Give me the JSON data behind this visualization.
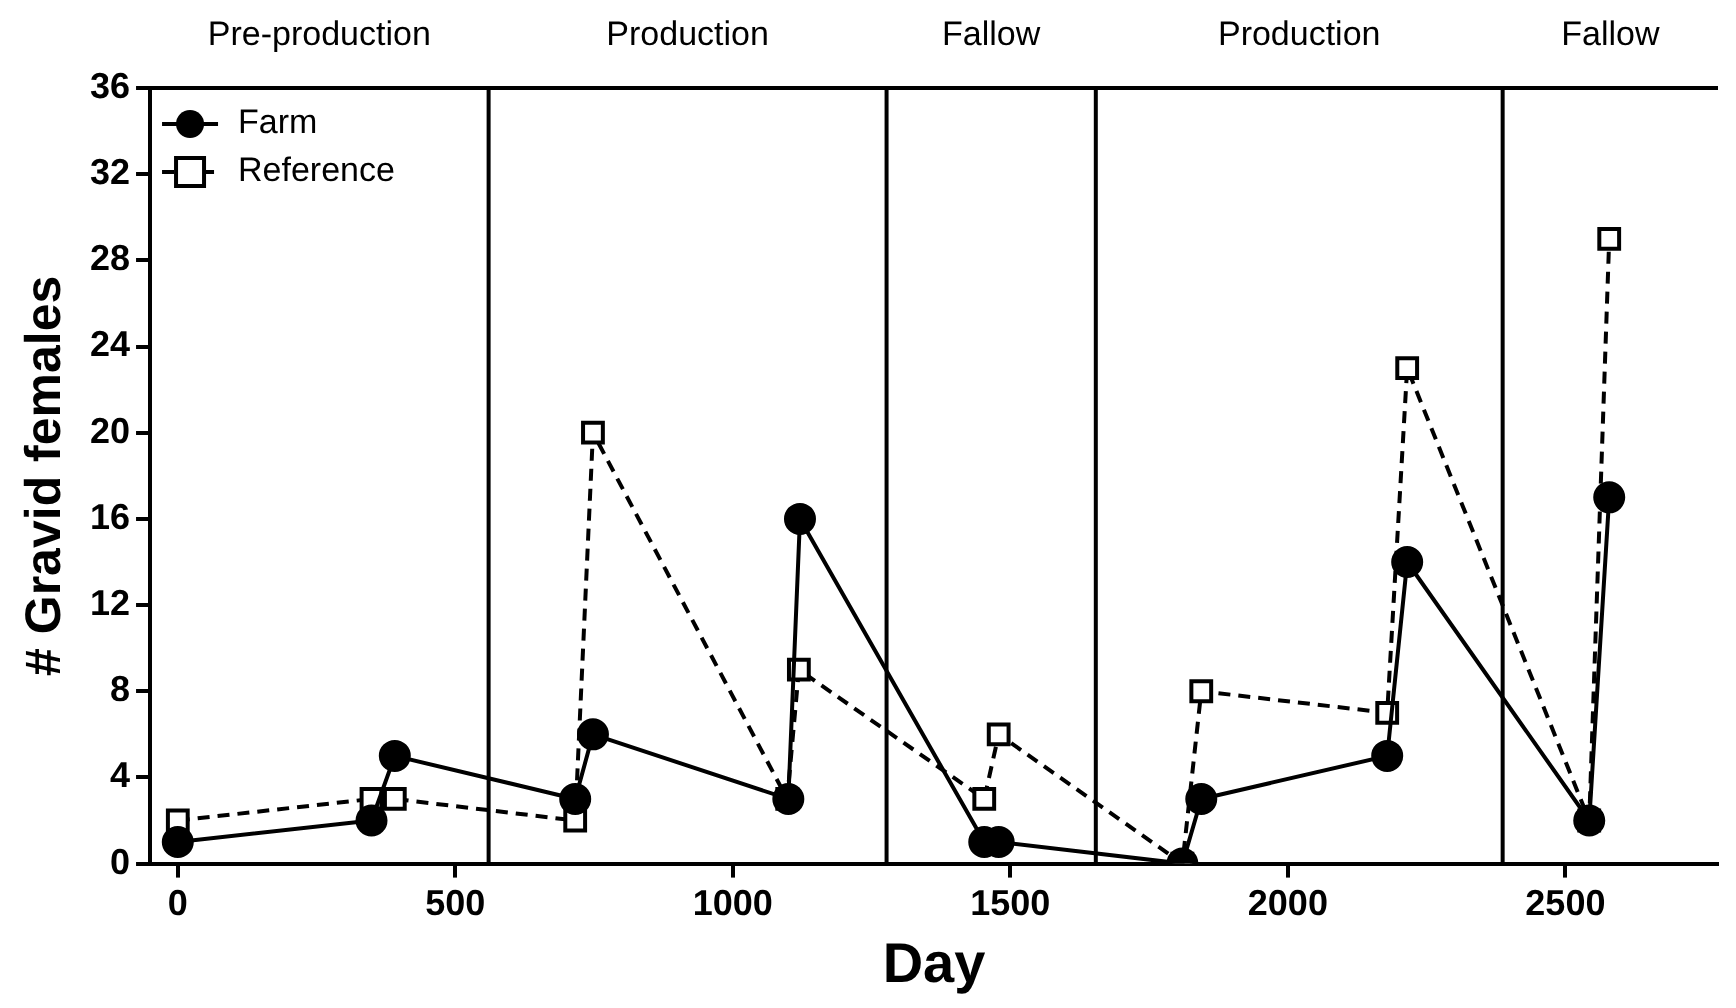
{
  "chart_data": {
    "type": "line",
    "xlabel": "Day",
    "ylabel": "# Gravid females",
    "xlim": [
      -50,
      2775
    ],
    "xticks": [
      0,
      500,
      1000,
      1500,
      2000,
      2500
    ],
    "ylim": [
      0,
      36
    ],
    "yticks": [
      0,
      4,
      8,
      12,
      16,
      20,
      24,
      28,
      32,
      36
    ],
    "grid": false,
    "legend": "top left",
    "series": [
      {
        "name": "Farm",
        "color": "#000000",
        "marker": "circle",
        "line_style": "solid",
        "x": [
          0,
          349,
          391,
          716,
          748,
          1100,
          1121,
          1453,
          1479,
          1810,
          1844,
          2179,
          2215,
          2543,
          2579
        ],
        "values": [
          1,
          2,
          5,
          3,
          6,
          3,
          16,
          1,
          1,
          0,
          3,
          5,
          14,
          2,
          17
        ]
      },
      {
        "name": "Reference",
        "color": "#000000",
        "marker": "square",
        "line_style": "dashed",
        "x": [
          0,
          349,
          391,
          716,
          748,
          1098,
          1119,
          1453,
          1479,
          1810,
          1844,
          2179,
          2215,
          2543,
          2579
        ],
        "values": [
          2,
          3,
          3,
          2,
          20,
          3,
          9,
          3,
          6,
          0,
          8,
          7,
          23,
          2,
          29
        ]
      }
    ],
    "ref_lines": [
      {
        "axis": "x",
        "value": 560
      },
      {
        "axis": "x",
        "value": 1277
      },
      {
        "axis": "x",
        "value": 1654
      },
      {
        "axis": "x",
        "value": 2387
      }
    ],
    "annotations": [
      "Pre-production",
      "Production",
      "Fallow",
      "Production",
      "Fallow"
    ]
  }
}
